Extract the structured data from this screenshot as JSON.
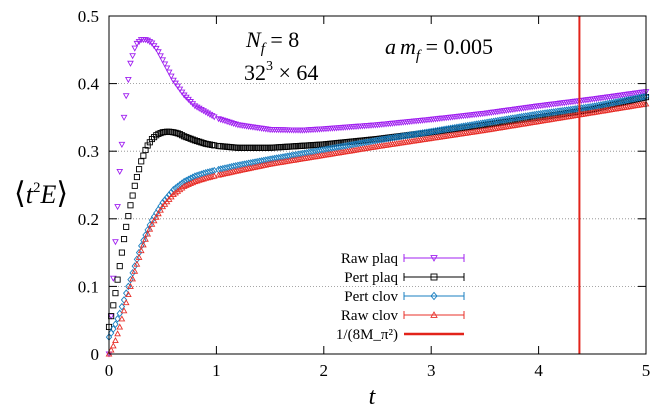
{
  "chart_data": {
    "type": "scatter",
    "xlabel": "t",
    "ylabel_parts": {
      "open": "⟨",
      "t": "t",
      "exp": "2",
      "e": "E",
      "close": "⟩"
    },
    "xlim": [
      0,
      5
    ],
    "ylim": [
      0,
      0.5
    ],
    "x_ticks": [
      "0",
      "1",
      "2",
      "3",
      "4",
      "5"
    ],
    "y_ticks": [
      "0",
      "0.1",
      "0.2",
      "0.3",
      "0.4",
      "0.5"
    ],
    "grid": "horizontal dotted",
    "legend_position": "bottom-center",
    "annotations": {
      "nf_n": "N",
      "nf_sub": "f",
      "nf_val": " = 8",
      "vol_base": "32",
      "vol_exp": "3",
      "vol_rest": " × 64",
      "am_a": "a",
      "am_m": "m",
      "am_sub": "f",
      "am_val": " = 0.005"
    },
    "vline": {
      "x": 4.38,
      "label": "1/(8M_π²)",
      "color": "#e2231a"
    },
    "series": [
      {
        "name": "Raw plaq",
        "color": "#a020f0",
        "marker": "triangle-down",
        "x": [
          0,
          0.05,
          0.1,
          0.15,
          0.2,
          0.25,
          0.3,
          0.35,
          0.4,
          0.45,
          0.5,
          0.55,
          0.6,
          0.7,
          0.8,
          1.0,
          1.2,
          1.5,
          1.8,
          2.0,
          2.5,
          3.0,
          3.5,
          4.0,
          4.5,
          5.0
        ],
        "y": [
          0.0,
          0.14,
          0.27,
          0.37,
          0.43,
          0.458,
          0.465,
          0.465,
          0.46,
          0.45,
          0.435,
          0.42,
          0.405,
          0.383,
          0.367,
          0.349,
          0.339,
          0.332,
          0.331,
          0.333,
          0.339,
          0.347,
          0.356,
          0.367,
          0.377,
          0.388
        ]
      },
      {
        "name": "Pert plaq",
        "color": "#000000",
        "marker": "square",
        "x": [
          0,
          0.05,
          0.1,
          0.15,
          0.2,
          0.25,
          0.3,
          0.35,
          0.4,
          0.45,
          0.5,
          0.55,
          0.6,
          0.65,
          0.7,
          0.8,
          0.9,
          1.0,
          1.2,
          1.5,
          2.0,
          2.5,
          3.0,
          3.5,
          4.0,
          4.5,
          5.0
        ],
        "y": [
          0.04,
          0.08,
          0.13,
          0.18,
          0.22,
          0.256,
          0.285,
          0.306,
          0.318,
          0.325,
          0.328,
          0.329,
          0.328,
          0.326,
          0.322,
          0.316,
          0.311,
          0.308,
          0.305,
          0.305,
          0.31,
          0.318,
          0.328,
          0.339,
          0.35,
          0.362,
          0.38
        ]
      },
      {
        "name": "Pert clov",
        "color": "#1a7fc1",
        "marker": "diamond",
        "x": [
          0,
          0.05,
          0.1,
          0.15,
          0.2,
          0.25,
          0.3,
          0.35,
          0.4,
          0.5,
          0.6,
          0.7,
          0.8,
          0.9,
          1.0,
          1.2,
          1.5,
          2.0,
          2.5,
          3.0,
          3.5,
          4.0,
          4.5,
          5.0
        ],
        "y": [
          0.025,
          0.04,
          0.06,
          0.085,
          0.11,
          0.135,
          0.16,
          0.18,
          0.198,
          0.224,
          0.243,
          0.255,
          0.263,
          0.268,
          0.272,
          0.279,
          0.288,
          0.302,
          0.316,
          0.329,
          0.342,
          0.355,
          0.366,
          0.381
        ]
      },
      {
        "name": "Raw clov",
        "color": "#e8302a",
        "marker": "triangle-up",
        "x": [
          0,
          0.05,
          0.1,
          0.15,
          0.2,
          0.25,
          0.3,
          0.35,
          0.4,
          0.5,
          0.6,
          0.7,
          0.8,
          0.9,
          1.0,
          1.2,
          1.5,
          2.0,
          2.5,
          3.0,
          3.5,
          4.0,
          4.5,
          5.0
        ],
        "y": [
          0.0,
          0.015,
          0.04,
          0.07,
          0.1,
          0.128,
          0.153,
          0.174,
          0.192,
          0.218,
          0.236,
          0.248,
          0.255,
          0.26,
          0.264,
          0.271,
          0.281,
          0.294,
          0.307,
          0.319,
          0.331,
          0.344,
          0.357,
          0.37
        ]
      }
    ]
  }
}
